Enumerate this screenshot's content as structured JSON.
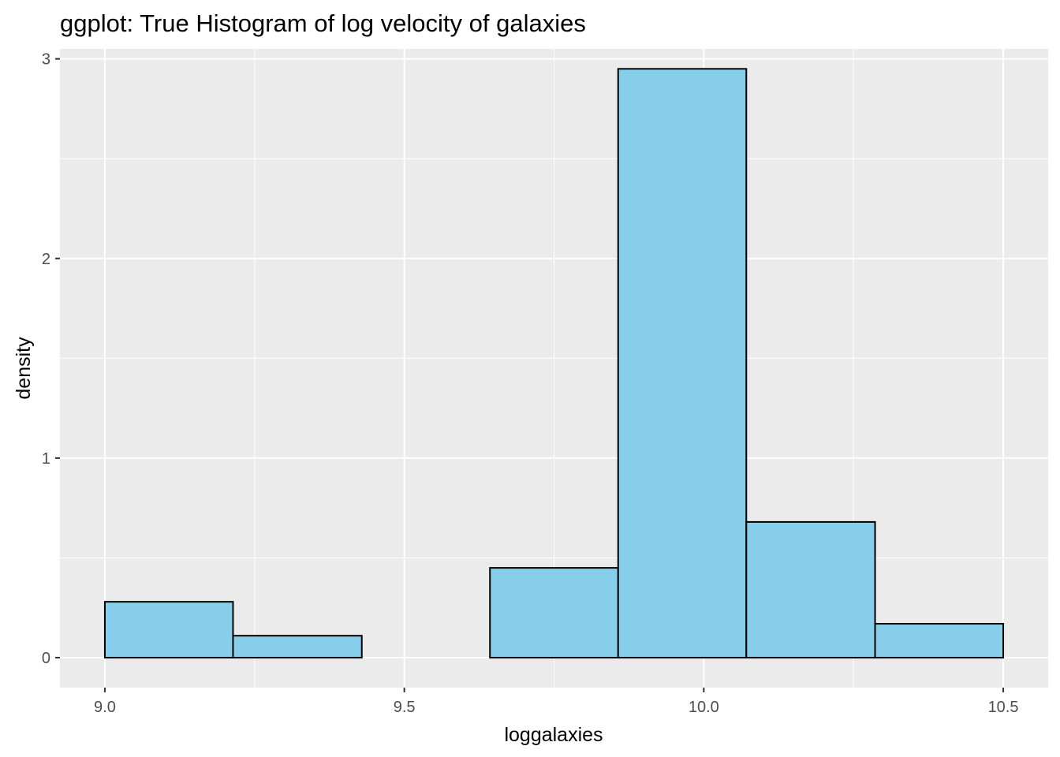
{
  "chart_data": {
    "type": "bar",
    "title": "ggplot: True Histogram of log velocity of galaxies",
    "xlabel": "loggalaxies",
    "ylabel": "density",
    "xlim": [
      8.925,
      10.575
    ],
    "ylim": [
      -0.15,
      3.05
    ],
    "x_ticks": [
      {
        "value": 9.0,
        "label": "9.0"
      },
      {
        "value": 9.5,
        "label": "9.5"
      },
      {
        "value": 10.0,
        "label": "10.0"
      },
      {
        "value": 10.5,
        "label": "10.5"
      }
    ],
    "y_ticks": [
      {
        "value": 0,
        "label": "0"
      },
      {
        "value": 1,
        "label": "1"
      },
      {
        "value": 2,
        "label": "2"
      },
      {
        "value": 3,
        "label": "3"
      }
    ],
    "bins": [
      {
        "xmin": 9.0,
        "xmax": 9.214,
        "density": 0.28
      },
      {
        "xmin": 9.214,
        "xmax": 9.429,
        "density": 0.11
      },
      {
        "xmin": 9.429,
        "xmax": 9.643,
        "density": 0.0
      },
      {
        "xmin": 9.643,
        "xmax": 9.857,
        "density": 0.45
      },
      {
        "xmin": 9.857,
        "xmax": 10.071,
        "density": 2.95
      },
      {
        "xmin": 10.071,
        "xmax": 10.286,
        "density": 0.68
      },
      {
        "xmin": 10.286,
        "xmax": 10.5,
        "density": 0.17
      }
    ],
    "grid": true,
    "colors": {
      "panel_background": "#ebebeb",
      "grid_major": "#ffffff",
      "bar_fill": "#87ceeb",
      "bar_outline": "#000000",
      "tick_mark": "#333333"
    }
  }
}
